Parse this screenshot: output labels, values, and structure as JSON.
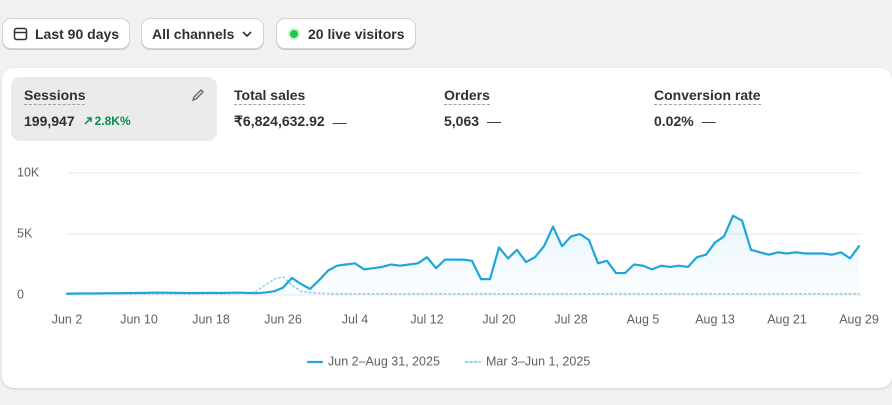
{
  "toolbar": {
    "date_range": "Last 90 days",
    "channels": "All channels",
    "live_visitors": "20 live visitors"
  },
  "metrics": [
    {
      "label": "Sessions",
      "value": "199,947",
      "change": "2.8K%"
    },
    {
      "label": "Total sales",
      "value": "₹6,824,632.92",
      "change": "—"
    },
    {
      "label": "Orders",
      "value": "5,063",
      "change": "—"
    },
    {
      "label": "Conversion rate",
      "value": "0.02%",
      "change": "—"
    }
  ],
  "chart_data": {
    "type": "line",
    "categories": [
      "Jun 2",
      null,
      null,
      null,
      null,
      null,
      null,
      null,
      "Jun 10",
      null,
      null,
      null,
      null,
      null,
      null,
      null,
      "Jun 18",
      null,
      null,
      null,
      null,
      null,
      null,
      null,
      "Jun 26",
      null,
      null,
      null,
      null,
      null,
      null,
      null,
      "Jul 4",
      null,
      null,
      null,
      null,
      null,
      null,
      null,
      "Jul 12",
      null,
      null,
      null,
      null,
      null,
      null,
      null,
      "Jul 20",
      null,
      null,
      null,
      null,
      null,
      null,
      null,
      "Jul 28",
      null,
      null,
      null,
      null,
      null,
      null,
      null,
      "Aug 5",
      null,
      null,
      null,
      null,
      null,
      null,
      null,
      "Aug 13",
      null,
      null,
      null,
      null,
      null,
      null,
      null,
      "Aug 21",
      null,
      null,
      null,
      null,
      null,
      null,
      null,
      "Aug 29"
    ],
    "ylim": [
      0,
      10000
    ],
    "yticks": [
      {
        "value": 0,
        "label": "0"
      },
      {
        "value": 5000,
        "label": "5K"
      },
      {
        "value": 10000,
        "label": "10K"
      }
    ],
    "grid": true,
    "series": [
      {
        "name": "Jun 2–Aug 31, 2025",
        "color": "#1ea5da",
        "style": "solid",
        "values": [
          100,
          120,
          130,
          130,
          140,
          150,
          150,
          160,
          170,
          180,
          200,
          190,
          180,
          170,
          160,
          170,
          180,
          170,
          180,
          200,
          170,
          150,
          200,
          300,
          600,
          1400,
          900,
          500,
          1200,
          2000,
          2400,
          2500,
          2600,
          2100,
          2200,
          2300,
          2500,
          2400,
          2500,
          2600,
          3100,
          2200,
          2900,
          2900,
          2900,
          2800,
          1300,
          1300,
          3900,
          3000,
          3700,
          2700,
          3100,
          4000,
          5600,
          4000,
          4800,
          5000,
          4500,
          2600,
          2800,
          1800,
          1800,
          2500,
          2400,
          2100,
          2400,
          2300,
          2400,
          2300,
          3100,
          3300,
          4300,
          4800,
          6500,
          6100,
          3700,
          3500,
          3300,
          3500,
          3400,
          3500,
          3400,
          3400,
          3400,
          3300,
          3500,
          3000,
          4000
        ]
      },
      {
        "name": "Mar 3–Jun 1, 2025",
        "color": "#8fd3ea",
        "style": "dotted",
        "values": [
          80,
          90,
          100,
          100,
          90,
          100,
          110,
          100,
          90,
          100,
          100,
          110,
          100,
          90,
          100,
          100,
          110,
          100,
          100,
          120,
          150,
          300,
          800,
          1300,
          1500,
          800,
          300,
          200,
          150,
          120,
          100,
          100,
          100,
          100,
          100,
          100,
          100,
          100,
          100,
          100,
          100,
          110,
          100,
          90,
          100,
          100,
          110,
          100,
          100,
          90,
          100,
          100,
          100,
          100,
          100,
          100,
          100,
          100,
          100,
          100,
          100,
          110,
          100,
          100,
          90,
          100,
          100,
          110,
          100,
          100,
          100,
          100,
          100,
          100,
          100,
          100,
          100,
          100,
          100,
          100,
          100,
          100,
          100,
          100,
          100,
          100,
          100,
          100,
          100
        ]
      }
    ]
  }
}
